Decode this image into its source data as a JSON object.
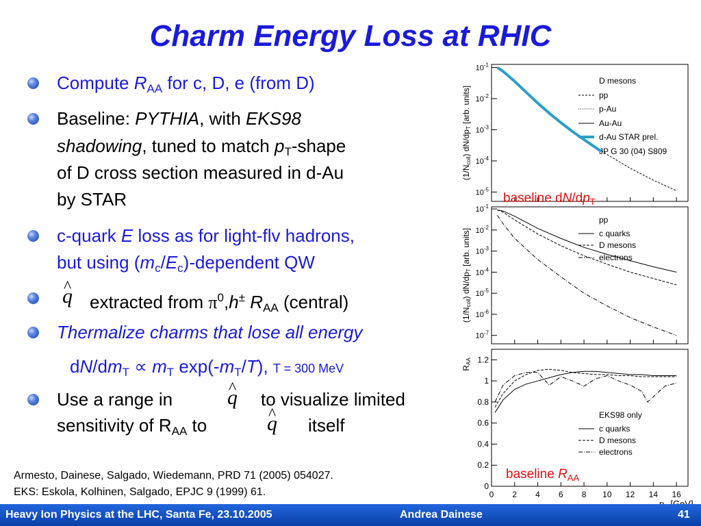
{
  "slide": {
    "title": "Charm Energy Loss at RHIC",
    "page_number": "41"
  },
  "bullets": {
    "b1": {
      "t1": "Compute ",
      "r": "R",
      "aa": "AA",
      "t2": " for c, D, e (from D)"
    },
    "b2": {
      "t1": "Baseline: ",
      "pythia": "PYTHIA",
      "t2": ", with ",
      "eks": "EKS98",
      "line2_it": "shadowing",
      "line2_t": ", tuned to match ",
      "p": "p",
      "T": "T",
      "line2_end": "-shape",
      "line3": "of D cross section measured in d-Au",
      "line4": "by STAR"
    },
    "b3": {
      "line1_t1": "c-quark ",
      "E": "E",
      "line1_t2": " loss as for light-flv hadrons,",
      "line2_t1": "but using (",
      "m": "m",
      "c1": "c",
      "slash": "/",
      "E2": "E",
      "c2": "c",
      "line2_t2": ")-dependent QW"
    },
    "b4": {
      "q": "q",
      "hat": "^",
      "t1": "extracted from ",
      "pi": "π",
      "zero": "0",
      "comma": ",",
      "h": "h",
      "pm": "±",
      "R": "R",
      "aa": "AA",
      "t2": " (central)"
    },
    "b5": {
      "t1": "Thermalize charms that lose all energy",
      "f_d": "d",
      "f_N": "N",
      "f_slash": "/",
      "f_d2": "d",
      "f_m": "m",
      "f_T": "T",
      "f_prop": "∝",
      "f_m2": "m",
      "f_T2": "T",
      "f_exp": " exp(-",
      "f_m3": "m",
      "f_T3": "T",
      "f_slash2": "/",
      "f_Tvar": "T",
      "f_end": "),",
      "temp": "T = 300 MeV"
    },
    "b6": {
      "t1": "Use a range in",
      "t2": "to visualize limited",
      "line2_t1": "sensitivity of R",
      "aa": "AA",
      "line2_t2": " to",
      "line2_t3": "itself"
    }
  },
  "references": [
    "Armesto, Dainese, Salgado, Wiedemann, PRD 71 (2005) 054027.",
    "EKS: Eskola, Kolhinen, Salgado, EPJC 9 (1999) 61."
  ],
  "footer": {
    "left": "Heavy Ion Physics at the LHC, Santa Fe, 23.10.2005",
    "center": "Andrea Dainese",
    "right": "41"
  },
  "colors": {
    "title": "#1a1adc",
    "text_blue": "#1a1adc",
    "footer": "#0a3fa6",
    "annotation": "#e01010",
    "star_band": "#2a9fc8"
  },
  "chart_data": [
    {
      "type": "line",
      "panel": "top",
      "ylabel": "(1/N_coll) dN/dp_T [arb. units]",
      "ylog": true,
      "yticks": [
        "10^-1",
        "10^-2",
        "10^-3",
        "10^-4",
        "10^-5"
      ],
      "legend_title": "D mesons",
      "legend": [
        "pp",
        "p-Au",
        "Au-Au",
        "d-Au STAR prel.",
        "JP G 30 (04) S809"
      ],
      "annotation": {
        "t1": "baseline d",
        "N": "N",
        "t2": "/d",
        "p": "p",
        "T": "T"
      },
      "series": [
        {
          "name": "pp",
          "x": [
            0.5,
            1,
            2,
            3,
            4,
            5,
            6,
            7,
            8,
            10,
            12,
            14,
            16
          ],
          "y": [
            0.1,
            0.075,
            0.036,
            0.016,
            0.0072,
            0.0034,
            0.0017,
            0.00088,
            0.00048,
            0.00016,
            5.8e-05,
            2.4e-05,
            1.1e-05
          ]
        },
        {
          "name": "d-Au STAR prel.",
          "x": [
            0.5,
            1,
            2,
            3,
            4,
            5,
            6,
            7,
            8,
            9.5
          ],
          "y": [
            0.1,
            0.075,
            0.036,
            0.016,
            0.0072,
            0.0034,
            0.0017,
            0.00088,
            0.00048,
            0.0002
          ]
        }
      ]
    },
    {
      "type": "line",
      "panel": "middle",
      "ylabel": "(1/N_coll) dN/dp_T [arb. units]",
      "ylog": true,
      "yticks": [
        "10^-1",
        "10^-2",
        "10^-3",
        "10^-4",
        "10^-5",
        "10^-6",
        "10^-7"
      ],
      "legend_title": "pp",
      "legend": [
        "c quarks",
        "D mesons",
        "electrons"
      ],
      "series": [
        {
          "name": "c quarks",
          "x": [
            0.5,
            1,
            2,
            4,
            6,
            8,
            10,
            12,
            14,
            16
          ],
          "y": [
            0.09,
            0.08,
            0.045,
            0.012,
            0.004,
            0.0015,
            0.0007,
            0.00035,
            0.00018,
            0.0001
          ]
        },
        {
          "name": "D mesons",
          "x": [
            0.5,
            1,
            2,
            4,
            6,
            8,
            10,
            12,
            14,
            16
          ],
          "y": [
            0.09,
            0.07,
            0.03,
            0.0065,
            0.0018,
            0.0006,
            0.00024,
            0.0001,
            5e-05,
            2.5e-05
          ]
        },
        {
          "name": "electrons",
          "x": [
            0.5,
            1,
            2,
            4,
            6,
            8,
            10,
            12,
            14,
            16
          ],
          "y": [
            0.05,
            0.02,
            0.004,
            0.0004,
            6e-05,
            1e-05,
            2.5e-06,
            7e-07,
            2.5e-07,
            1e-07
          ]
        }
      ]
    },
    {
      "type": "line",
      "panel": "bottom",
      "ylabel": "R_AA",
      "xlabel": "p_T [GeV]",
      "xlim": [
        0,
        17
      ],
      "ylim": [
        0,
        1.3
      ],
      "xticks": [
        0,
        2,
        4,
        6,
        8,
        10,
        12,
        14,
        16
      ],
      "yticks": [
        0,
        0.2,
        0.4,
        0.6,
        0.8,
        1,
        1.2
      ],
      "legend_title": "EKS98 only",
      "legend": [
        "c quarks",
        "D mesons",
        "electrons"
      ],
      "annotation": {
        "t1": "baseline ",
        "R": "R",
        "aa": "AA"
      },
      "series": [
        {
          "name": "c quarks",
          "x": [
            0.3,
            1,
            2,
            3,
            4,
            5,
            6,
            7,
            8,
            9,
            10,
            11,
            12,
            13,
            14,
            15,
            16
          ],
          "y": [
            0.7,
            0.82,
            0.92,
            0.97,
            1.0,
            1.03,
            1.06,
            1.08,
            1.09,
            1.09,
            1.08,
            1.07,
            1.06,
            1.06,
            1.05,
            1.05,
            1.05
          ]
        },
        {
          "name": "D mesons",
          "x": [
            0.3,
            1,
            2,
            3,
            4,
            5,
            6,
            7,
            8,
            9,
            10,
            11,
            12,
            13,
            14,
            15,
            16
          ],
          "y": [
            0.75,
            0.88,
            1.0,
            1.06,
            1.1,
            1.11,
            1.1,
            1.08,
            1.07,
            1.06,
            1.06,
            1.05,
            1.05,
            1.04,
            1.04,
            1.04,
            1.04
          ]
        },
        {
          "name": "electrons",
          "x": [
            0.3,
            1,
            2,
            3,
            4,
            5,
            6,
            7,
            8,
            9,
            10,
            11,
            12,
            13,
            13.5,
            14,
            15,
            16
          ],
          "y": [
            0.8,
            0.96,
            1.05,
            1.08,
            1.08,
            0.96,
            1.04,
            1.0,
            0.95,
            1.02,
            1.05,
            1.0,
            0.96,
            0.9,
            0.8,
            0.85,
            0.95,
            0.98
          ]
        }
      ]
    }
  ]
}
